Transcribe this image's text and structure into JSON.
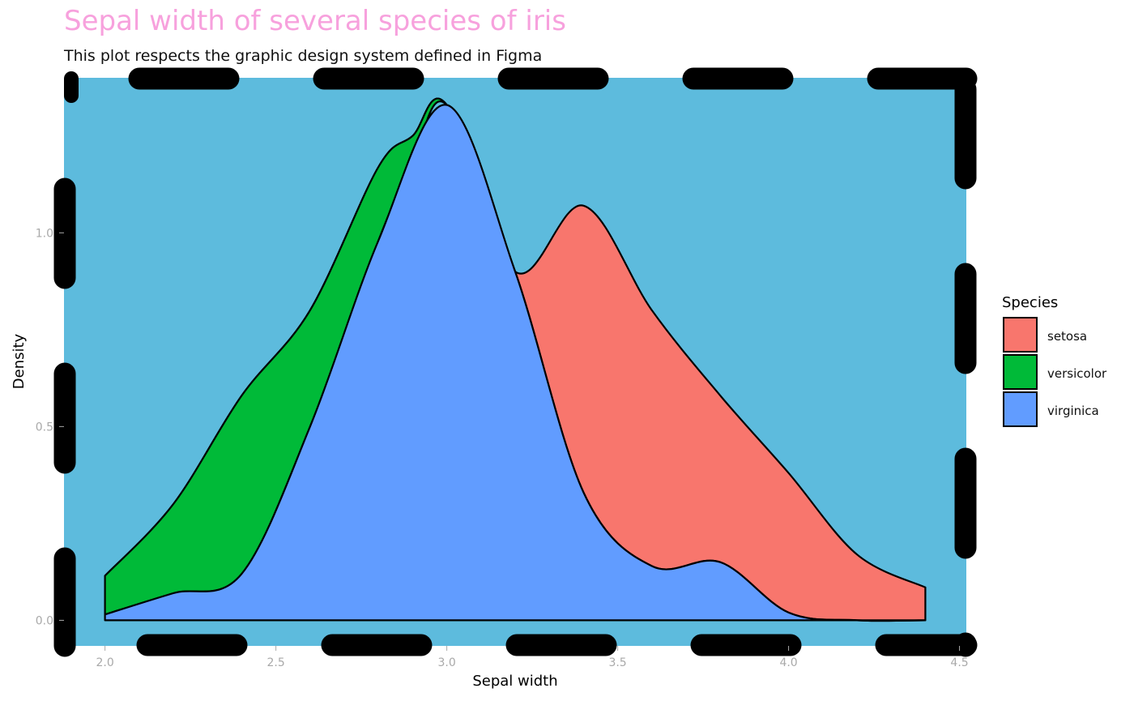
{
  "title": "Sepal width of several species of iris",
  "subtitle": "This plot respects the graphic design system defined in Figma",
  "colors": {
    "panel_background": "#5dbbdd",
    "title": "#f7a1dd",
    "tick_labels": "#a9a9a9",
    "panel_border": "#000000"
  },
  "chart_data": {
    "type": "area",
    "stacking": "stacked density",
    "xlabel": "Sepal width",
    "ylabel": "Density",
    "xlim": [
      1.88,
      4.52
    ],
    "ylim": [
      -0.066,
      1.4
    ],
    "x_ticks": [
      2.0,
      2.5,
      3.0,
      3.5,
      4.0,
      4.5
    ],
    "x_tick_labels": [
      "2.0",
      "2.5",
      "3.0",
      "3.5",
      "4.0",
      "4.5"
    ],
    "y_ticks": [
      0.0,
      0.5,
      1.0
    ],
    "y_tick_labels": [
      "0.0",
      "0.5",
      "1.0"
    ],
    "grid": false,
    "panel_border": "thick dashed black, rounded dashes",
    "legend": {
      "title": "Species",
      "placement": "right",
      "entries": [
        {
          "label": "setosa",
          "color": "#f8766d"
        },
        {
          "label": "versicolor",
          "color": "#00ba38"
        },
        {
          "label": "virginica",
          "color": "#619cff"
        }
      ]
    },
    "series": [
      {
        "name": "setosa",
        "color": "#f8766d",
        "x": [
          2.0,
          2.2,
          2.4,
          2.6,
          2.8,
          2.9,
          3.0,
          3.2,
          3.4,
          3.6,
          3.8,
          4.0,
          4.2,
          4.4
        ],
        "top": [
          0.115,
          0.3,
          0.58,
          0.8,
          1.17,
          1.25,
          1.33,
          0.9,
          1.07,
          0.8,
          0.58,
          0.38,
          0.17,
          0.085
        ],
        "bottom": [
          0.015,
          0.07,
          0.12,
          0.5,
          0.98,
          1.18,
          1.33,
          0.9,
          0.33,
          0.14,
          0.15,
          0.02,
          0.0,
          0.0
        ]
      },
      {
        "name": "versicolor",
        "color": "#00ba38",
        "x": [
          2.0,
          2.2,
          2.4,
          2.6,
          2.8,
          2.9,
          3.0,
          3.2
        ],
        "top": [
          0.115,
          0.3,
          0.58,
          0.8,
          1.17,
          1.25,
          1.33,
          0.9
        ],
        "bottom": [
          0.015,
          0.07,
          0.12,
          0.5,
          0.98,
          1.18,
          1.33,
          0.9
        ]
      },
      {
        "name": "virginica",
        "color": "#619cff",
        "x": [
          2.0,
          2.2,
          2.4,
          2.6,
          2.8,
          3.0,
          3.2,
          3.4,
          3.6,
          3.8,
          4.0,
          4.2,
          4.4
        ],
        "top": [
          0.015,
          0.07,
          0.12,
          0.5,
          0.98,
          1.33,
          0.9,
          0.33,
          0.14,
          0.15,
          0.02,
          0.0,
          0.0
        ],
        "bottom": [
          0,
          0,
          0,
          0,
          0,
          0,
          0,
          0,
          0,
          0,
          0,
          0,
          0
        ]
      }
    ]
  }
}
